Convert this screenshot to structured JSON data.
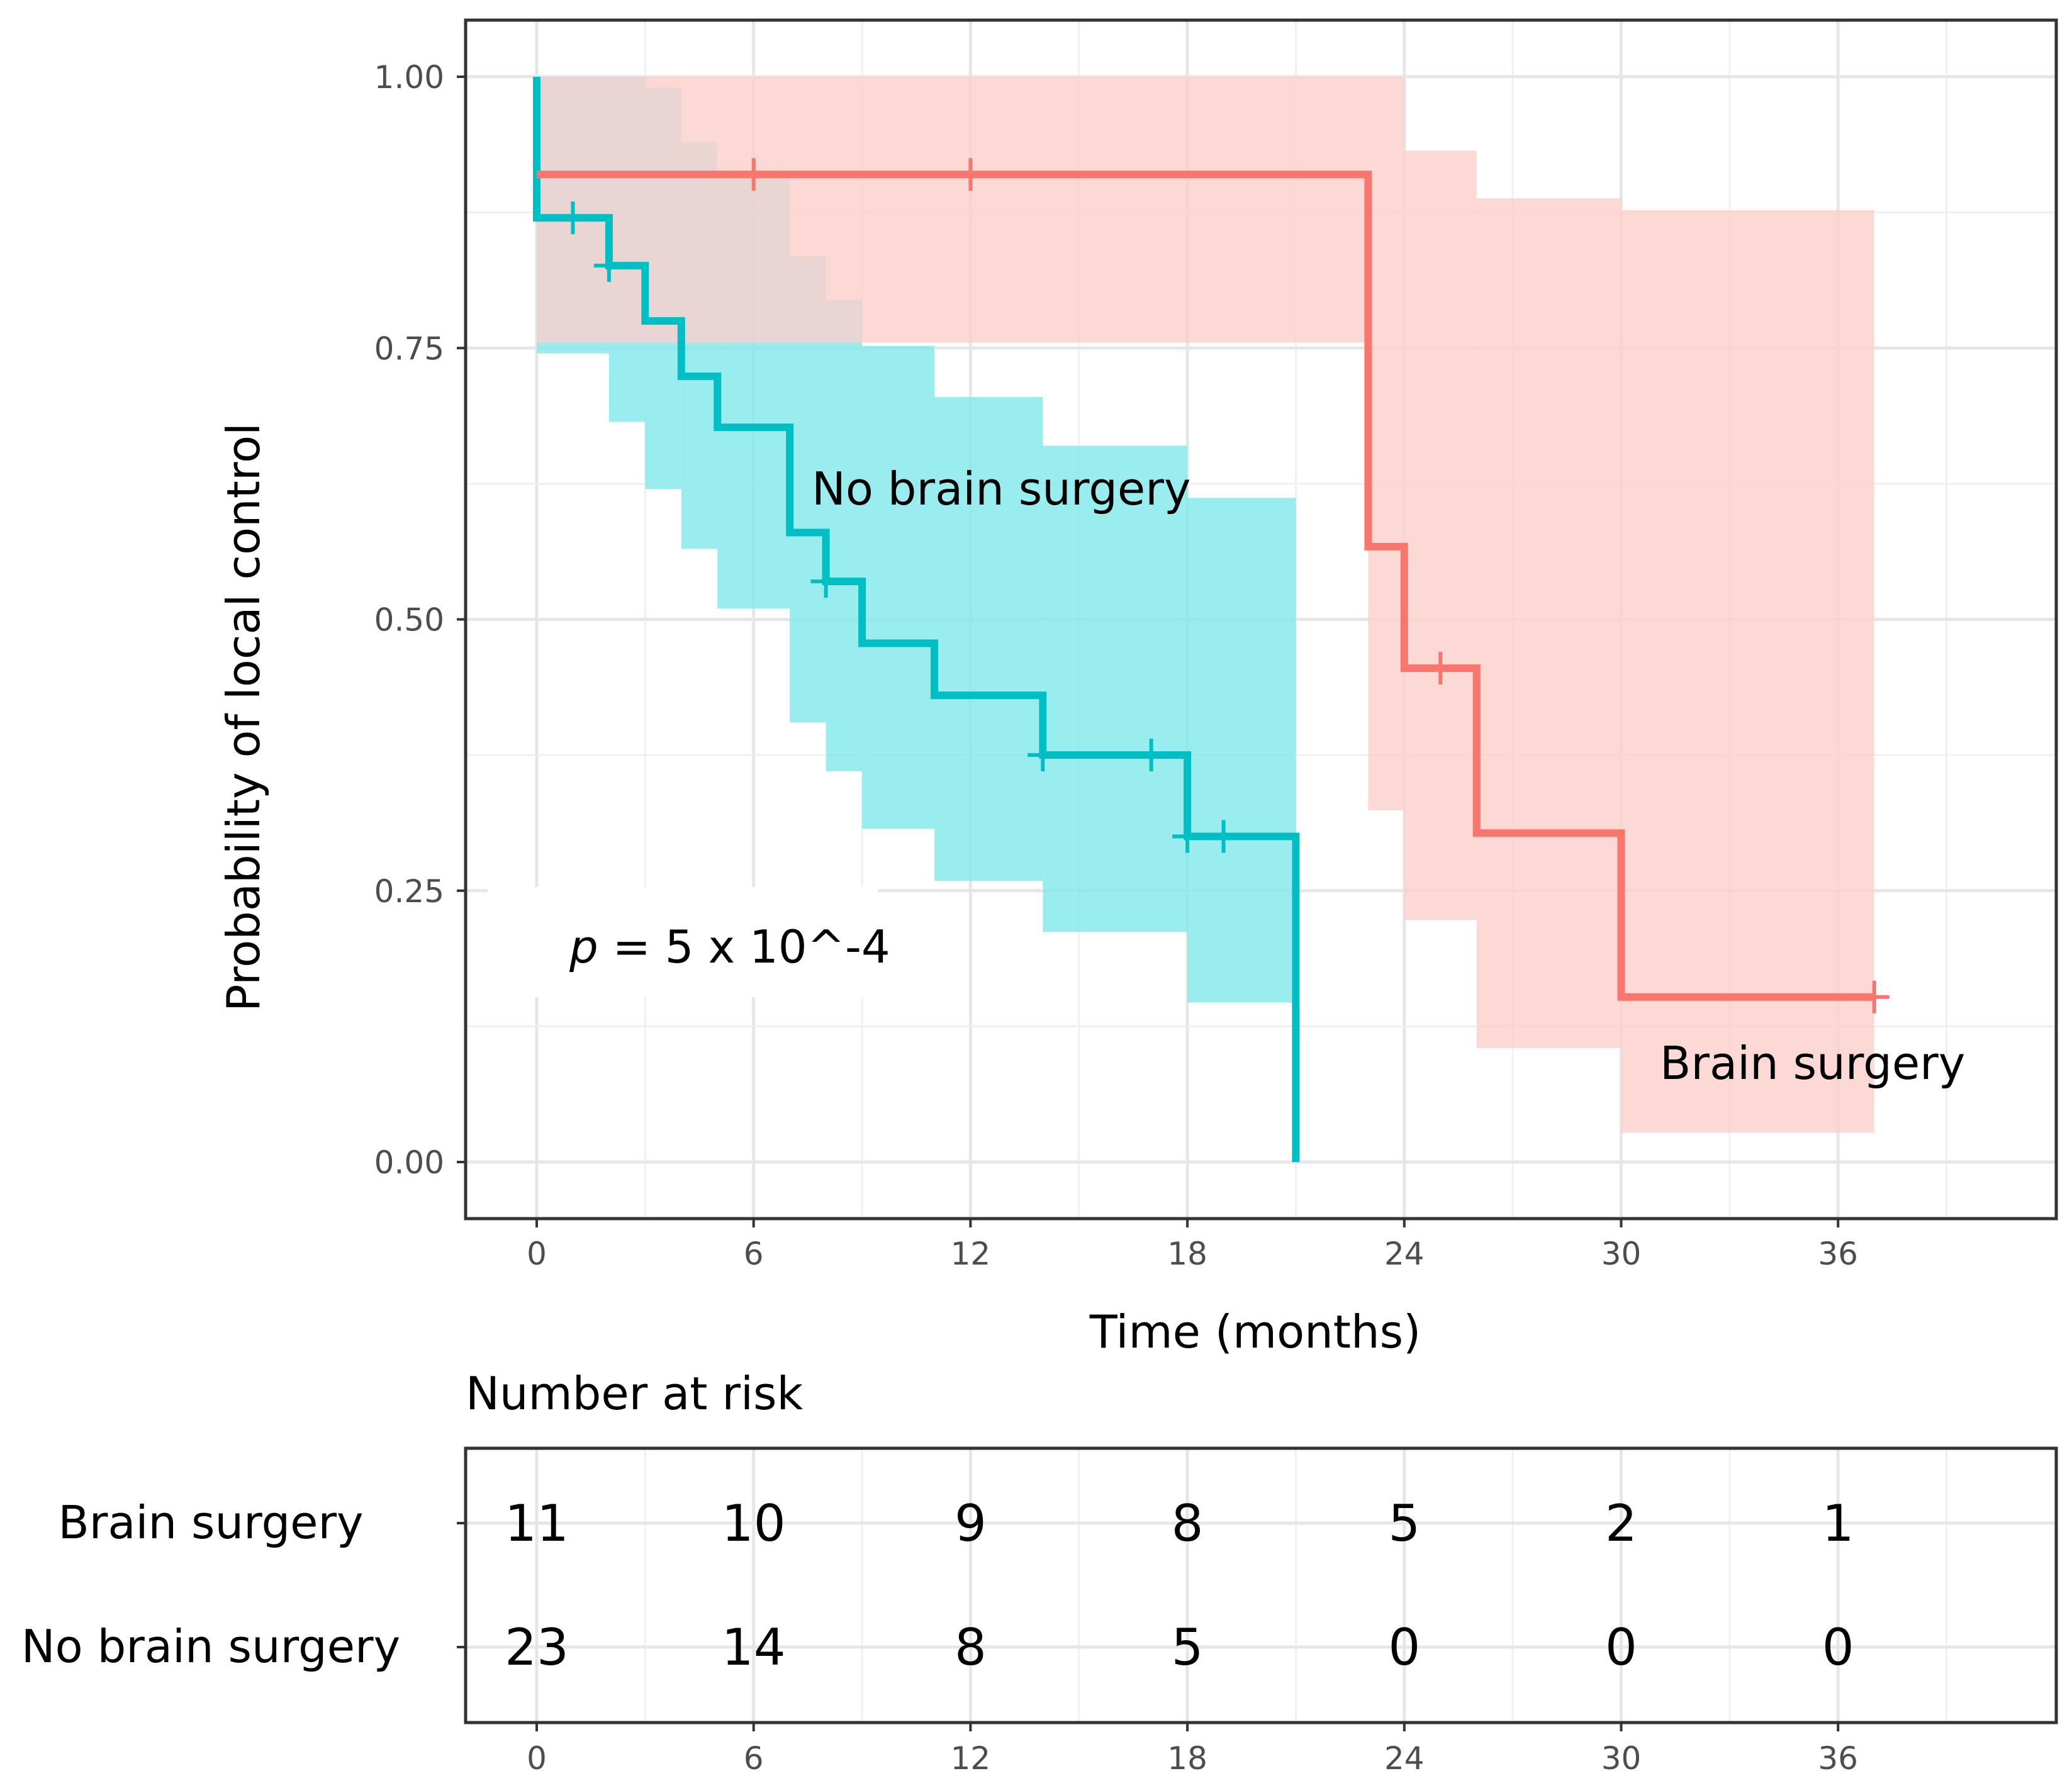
{
  "chart_data": {
    "type": "line",
    "subtype": "kaplan-meier",
    "xlabel": "Time (months)",
    "ylabel": "Probability of local control",
    "xlim": [
      -2,
      42
    ],
    "ylim": [
      -0.05,
      1.05
    ],
    "x_ticks": [
      0,
      6,
      12,
      18,
      24,
      30,
      36
    ],
    "y_ticks": [
      0.0,
      0.25,
      0.5,
      0.75,
      1.0
    ],
    "y_tick_labels": [
      "0.00",
      "0.25",
      "0.50",
      "0.75",
      "1.00"
    ],
    "grid": true,
    "annotation": {
      "p_symbol": "p",
      "p_value_text": " = 5 x 10^-4"
    },
    "series": [
      {
        "name": "No brain surgery",
        "color": "#00bfc4",
        "band_color": "#7fe8ea",
        "steps": [
          [
            0,
            1.0
          ],
          [
            0,
            0.87
          ],
          [
            2,
            0.87
          ],
          [
            2,
            0.826
          ],
          [
            3,
            0.826
          ],
          [
            3,
            0.775
          ],
          [
            4,
            0.775
          ],
          [
            4,
            0.724
          ],
          [
            5,
            0.724
          ],
          [
            5,
            0.677
          ],
          [
            7,
            0.677
          ],
          [
            7,
            0.58
          ],
          [
            8,
            0.58
          ],
          [
            8,
            0.535
          ],
          [
            9,
            0.535
          ],
          [
            9,
            0.478
          ],
          [
            11,
            0.478
          ],
          [
            11,
            0.43
          ],
          [
            14,
            0.43
          ],
          [
            14,
            0.375
          ],
          [
            18,
            0.375
          ],
          [
            18,
            0.3
          ],
          [
            21,
            0.3
          ],
          [
            21,
            0.0
          ]
        ],
        "ci": [
          {
            "x0": 0,
            "x1": 2,
            "lo": 0.745,
            "hi": 1.0
          },
          {
            "x0": 2,
            "x1": 3,
            "lo": 0.682,
            "hi": 1.0
          },
          {
            "x0": 3,
            "x1": 4,
            "lo": 0.62,
            "hi": 0.99
          },
          {
            "x0": 4,
            "x1": 5,
            "lo": 0.565,
            "hi": 0.94
          },
          {
            "x0": 5,
            "x1": 7,
            "lo": 0.51,
            "hi": 0.91
          },
          {
            "x0": 7,
            "x1": 8,
            "lo": 0.405,
            "hi": 0.835
          },
          {
            "x0": 8,
            "x1": 9,
            "lo": 0.36,
            "hi": 0.795
          },
          {
            "x0": 9,
            "x1": 11,
            "lo": 0.307,
            "hi": 0.752
          },
          {
            "x0": 11,
            "x1": 14,
            "lo": 0.259,
            "hi": 0.705
          },
          {
            "x0": 14,
            "x1": 18,
            "lo": 0.212,
            "hi": 0.66
          },
          {
            "x0": 18,
            "x1": 21,
            "lo": 0.147,
            "hi": 0.612
          }
        ],
        "censors": [
          [
            1,
            0.87
          ],
          [
            2,
            0.826
          ],
          [
            8,
            0.535
          ],
          [
            14,
            0.375
          ],
          [
            17,
            0.375
          ],
          [
            18,
            0.3
          ],
          [
            19,
            0.3
          ]
        ]
      },
      {
        "name": "Brain surgery",
        "color": "#f8766d",
        "band_color": "#fccfcb",
        "steps": [
          [
            0,
            0.91
          ],
          [
            23,
            0.91
          ],
          [
            23,
            0.567
          ],
          [
            24,
            0.567
          ],
          [
            24,
            0.455
          ],
          [
            26,
            0.455
          ],
          [
            26,
            0.303
          ],
          [
            30,
            0.303
          ],
          [
            30,
            0.152
          ],
          [
            37,
            0.152
          ]
        ],
        "ci": [
          {
            "x0": 0,
            "x1": 23,
            "lo": 0.755,
            "hi": 1.0
          },
          {
            "x0": 23,
            "x1": 24,
            "lo": 0.324,
            "hi": 1.0
          },
          {
            "x0": 24,
            "x1": 26,
            "lo": 0.223,
            "hi": 0.932
          },
          {
            "x0": 26,
            "x1": 30,
            "lo": 0.105,
            "hi": 0.888
          },
          {
            "x0": 30,
            "x1": 37,
            "lo": 0.027,
            "hi": 0.877
          }
        ],
        "censors": [
          [
            6,
            0.91
          ],
          [
            12,
            0.91
          ],
          [
            25,
            0.455
          ],
          [
            37,
            0.152
          ]
        ]
      }
    ],
    "labels": {
      "no_surgery_label": "No brain surgery",
      "surgery_label": "Brain surgery"
    },
    "risk_table": {
      "title": "Number at risk",
      "times": [
        0,
        6,
        12,
        18,
        24,
        30,
        36
      ],
      "rows": [
        {
          "name": "Brain surgery",
          "counts": [
            "11",
            "10",
            "9",
            "8",
            "5",
            "2",
            "1"
          ]
        },
        {
          "name": "No brain surgery",
          "counts": [
            "23",
            "14",
            "8",
            "5",
            "0",
            "0",
            "0"
          ]
        }
      ]
    }
  }
}
